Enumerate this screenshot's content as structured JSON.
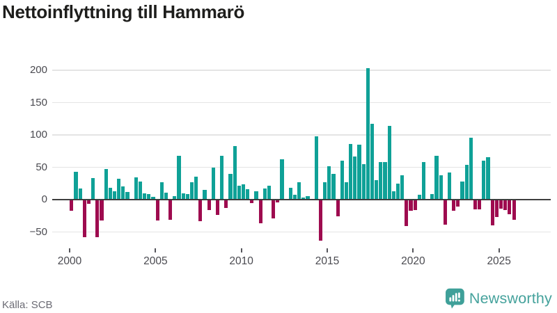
{
  "title": "Nettoinflyttning till Hammarö",
  "source": "Källa: SCB",
  "branding": {
    "name": "Newsworthy"
  },
  "colors": {
    "positive": "#0fa197",
    "negative": "#9e0b4f",
    "grid": "#e4e4e4",
    "zero_line": "#3e3e3e",
    "axis_text": "#4a4a50",
    "title_text": "#1e1e1c",
    "source_text": "#6b6b74",
    "brand": "#45a29c"
  },
  "chart_data": {
    "type": "bar",
    "title": "Nettoinflyttning till Hammarö",
    "freq": "quarterly",
    "grid": "horizontal",
    "ylim": [
      -75,
      215
    ],
    "yticks": [
      {
        "value": 200,
        "label": "200"
      },
      {
        "value": 150,
        "label": "150"
      },
      {
        "value": 100,
        "label": "100"
      },
      {
        "value": 50,
        "label": "50"
      },
      {
        "value": 0,
        "label": "0"
      },
      {
        "value": -50,
        "label": "−50"
      }
    ],
    "xticks": [
      {
        "year": 2000,
        "label": "2000"
      },
      {
        "year": 2005,
        "label": "2005"
      },
      {
        "year": 2010,
        "label": "2010"
      },
      {
        "year": 2015,
        "label": "2015"
      },
      {
        "year": 2020,
        "label": "2020"
      },
      {
        "year": 2025,
        "label": "2025"
      }
    ],
    "years": [
      {
        "year": 2000,
        "values": [
          -17,
          43,
          17,
          -58
        ]
      },
      {
        "year": 2001,
        "values": [
          -6,
          33,
          -58,
          -32
        ]
      },
      {
        "year": 2002,
        "values": [
          47,
          18,
          13,
          32
        ]
      },
      {
        "year": 2003,
        "values": [
          20,
          12,
          0,
          34
        ]
      },
      {
        "year": 2004,
        "values": [
          28,
          10,
          9,
          4
        ]
      },
      {
        "year": 2005,
        "values": [
          -32,
          27,
          11,
          -31
        ]
      },
      {
        "year": 2006,
        "values": [
          5,
          68,
          10,
          9
        ]
      },
      {
        "year": 2007,
        "values": [
          27,
          36,
          -33,
          15
        ]
      },
      {
        "year": 2008,
        "values": [
          -16,
          49,
          -24,
          68
        ]
      },
      {
        "year": 2009,
        "values": [
          -13,
          40,
          83,
          21
        ]
      },
      {
        "year": 2010,
        "values": [
          24,
          16,
          -5,
          13
        ]
      },
      {
        "year": 2011,
        "values": [
          -37,
          17,
          21,
          -29
        ]
      },
      {
        "year": 2012,
        "values": [
          -4,
          62,
          0,
          18
        ]
      },
      {
        "year": 2013,
        "values": [
          8,
          27,
          3,
          5
        ]
      },
      {
        "year": 2014,
        "values": [
          0,
          98,
          -63,
          27
        ]
      },
      {
        "year": 2015,
        "values": [
          52,
          40,
          -26,
          60
        ]
      },
      {
        "year": 2016,
        "values": [
          27,
          86,
          67,
          85
        ]
      },
      {
        "year": 2017,
        "values": [
          55,
          203,
          117,
          30
        ]
      },
      {
        "year": 2018,
        "values": [
          58,
          58,
          114,
          13
        ]
      },
      {
        "year": 2019,
        "values": [
          25,
          38,
          -41,
          -17
        ]
      },
      {
        "year": 2020,
        "values": [
          -16,
          8,
          58,
          0
        ]
      },
      {
        "year": 2021,
        "values": [
          9,
          68,
          38,
          -39
        ]
      },
      {
        "year": 2022,
        "values": [
          42,
          -17,
          -11,
          28
        ]
      },
      {
        "year": 2023,
        "values": [
          54,
          96,
          -15,
          -15
        ]
      },
      {
        "year": 2024,
        "values": [
          60,
          66,
          -40,
          -27
        ]
      },
      {
        "year": 2025,
        "values": [
          -14,
          -16,
          -23,
          -31
        ]
      }
    ]
  }
}
